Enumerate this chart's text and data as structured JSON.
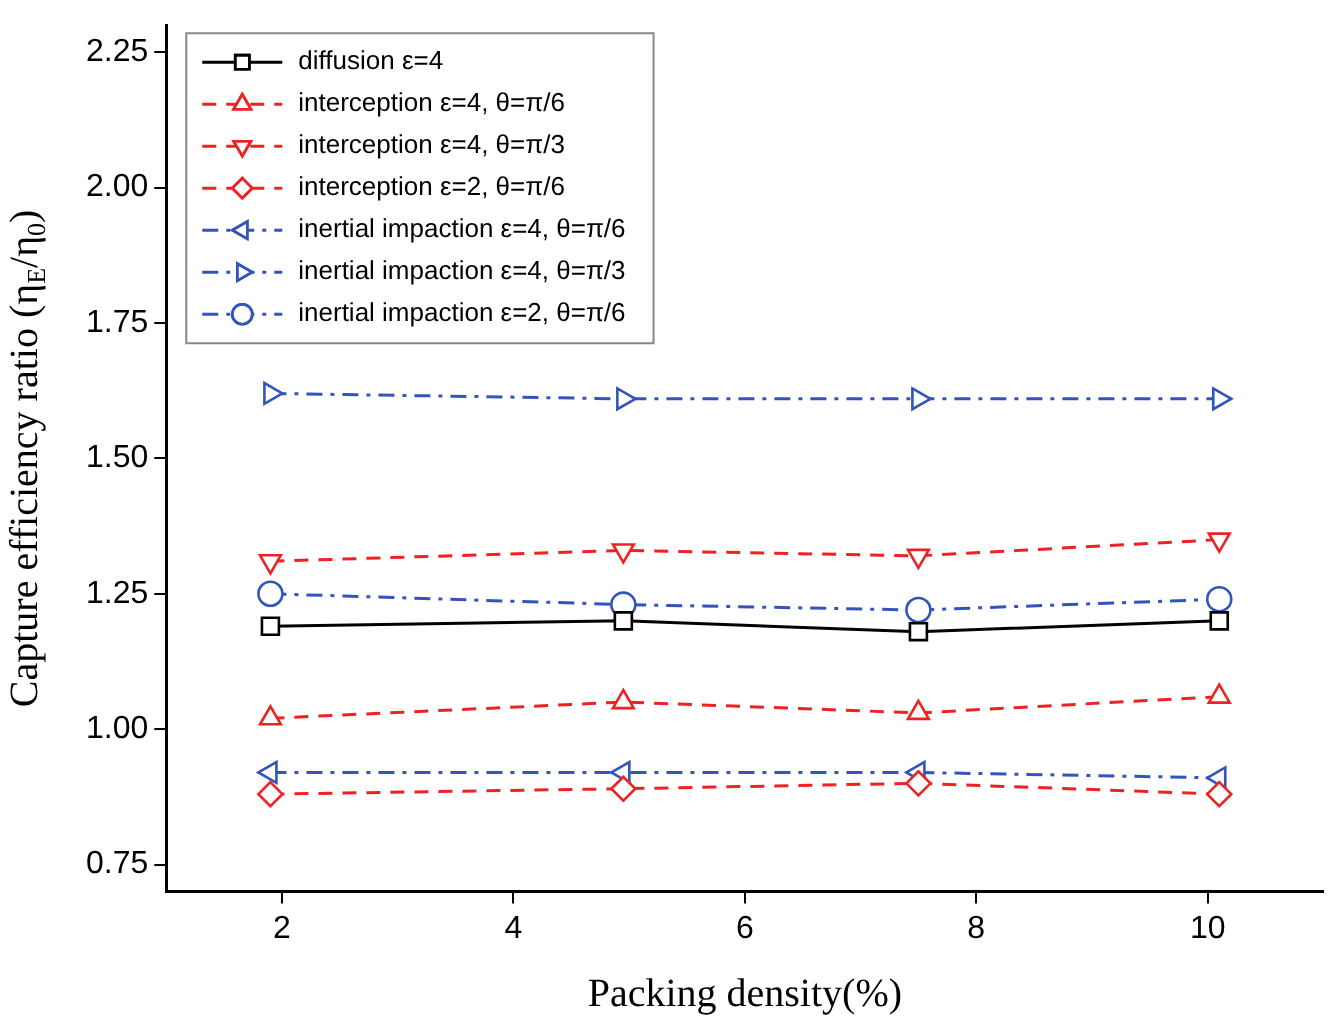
{
  "chart_data": {
    "type": "line",
    "xlabel": "Packing density(%)",
    "ylabel": "Capture efficiency ratio (η$_{E}$/η$_{0}$)",
    "x": [
      1.9,
      4.95,
      7.5,
      10.1
    ],
    "xlim": [
      1,
      11
    ],
    "xticks": [
      2,
      4,
      6,
      8,
      10
    ],
    "ylim": [
      0.7,
      2.3
    ],
    "yticks": [
      0.75,
      {
        "value": 1,
        "label": "1.00"
      },
      1.25,
      {
        "value": 1.5,
        "label": "1.50"
      },
      1.75,
      {
        "value": 2,
        "label": "2.00"
      },
      2.25
    ],
    "grid": false,
    "legend": "top left",
    "series": [
      {
        "name": "diffusion ε=4",
        "color": "#000000",
        "marker": "square",
        "line_style": "solid",
        "values": [
          1.19,
          1.2,
          1.18,
          1.2
        ]
      },
      {
        "name": "interception ε=4, θ=π/6",
        "color": "#ee2222",
        "marker": "triangle",
        "line_style": "dashed",
        "values": [
          1.02,
          1.05,
          1.03,
          1.06
        ]
      },
      {
        "name": "interception ε=4, θ=π/3",
        "color": "#ee2222",
        "marker": "triangle-down",
        "line_style": "dashed",
        "values": [
          1.31,
          1.33,
          1.32,
          1.35
        ]
      },
      {
        "name": "interception ε=2, θ=π/6",
        "color": "#ee2222",
        "marker": "diamond",
        "line_style": "dashed",
        "values": [
          0.88,
          0.89,
          0.9,
          0.88
        ]
      },
      {
        "name": "inertial impaction ε=4, θ=π/6",
        "color": "#3355bb",
        "marker": "triangle-left",
        "line_style": "dashdot",
        "values": [
          0.92,
          0.92,
          0.92,
          0.91
        ]
      },
      {
        "name": "inertial impaction ε=4, θ=π/3",
        "color": "#3355bb",
        "marker": "triangle-right",
        "line_style": "dashdot",
        "values": [
          1.62,
          1.61,
          1.61,
          1.61
        ]
      },
      {
        "name": "inertial impaction ε=2, θ=π/6",
        "color": "#3355bb",
        "marker": "circle",
        "line_style": "dashdot",
        "values": [
          1.25,
          1.23,
          1.22,
          1.24
        ]
      }
    ]
  }
}
